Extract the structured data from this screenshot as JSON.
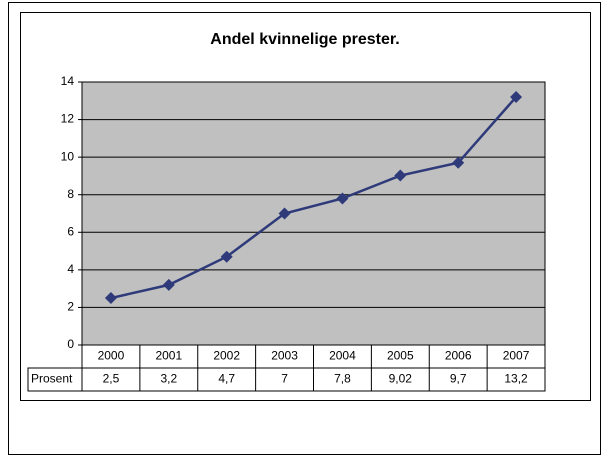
{
  "chart_data": {
    "type": "line",
    "title": "Andel kvinnelige prester.",
    "categories": [
      "2000",
      "2001",
      "2002",
      "2003",
      "2004",
      "2005",
      "2006",
      "2007"
    ],
    "series": [
      {
        "name": "Prosent",
        "color": "#2e3a7a",
        "values": [
          2.5,
          3.2,
          4.7,
          7,
          7.8,
          9.02,
          9.7,
          13.2
        ],
        "value_labels": [
          "2,5",
          "3,2",
          "4,7",
          "7",
          "7,8",
          "9,02",
          "9,7",
          "13,2"
        ]
      }
    ],
    "ylim": [
      0,
      14
    ],
    "yticks": [
      0,
      2,
      4,
      6,
      8,
      10,
      12,
      14
    ],
    "grid": true
  }
}
